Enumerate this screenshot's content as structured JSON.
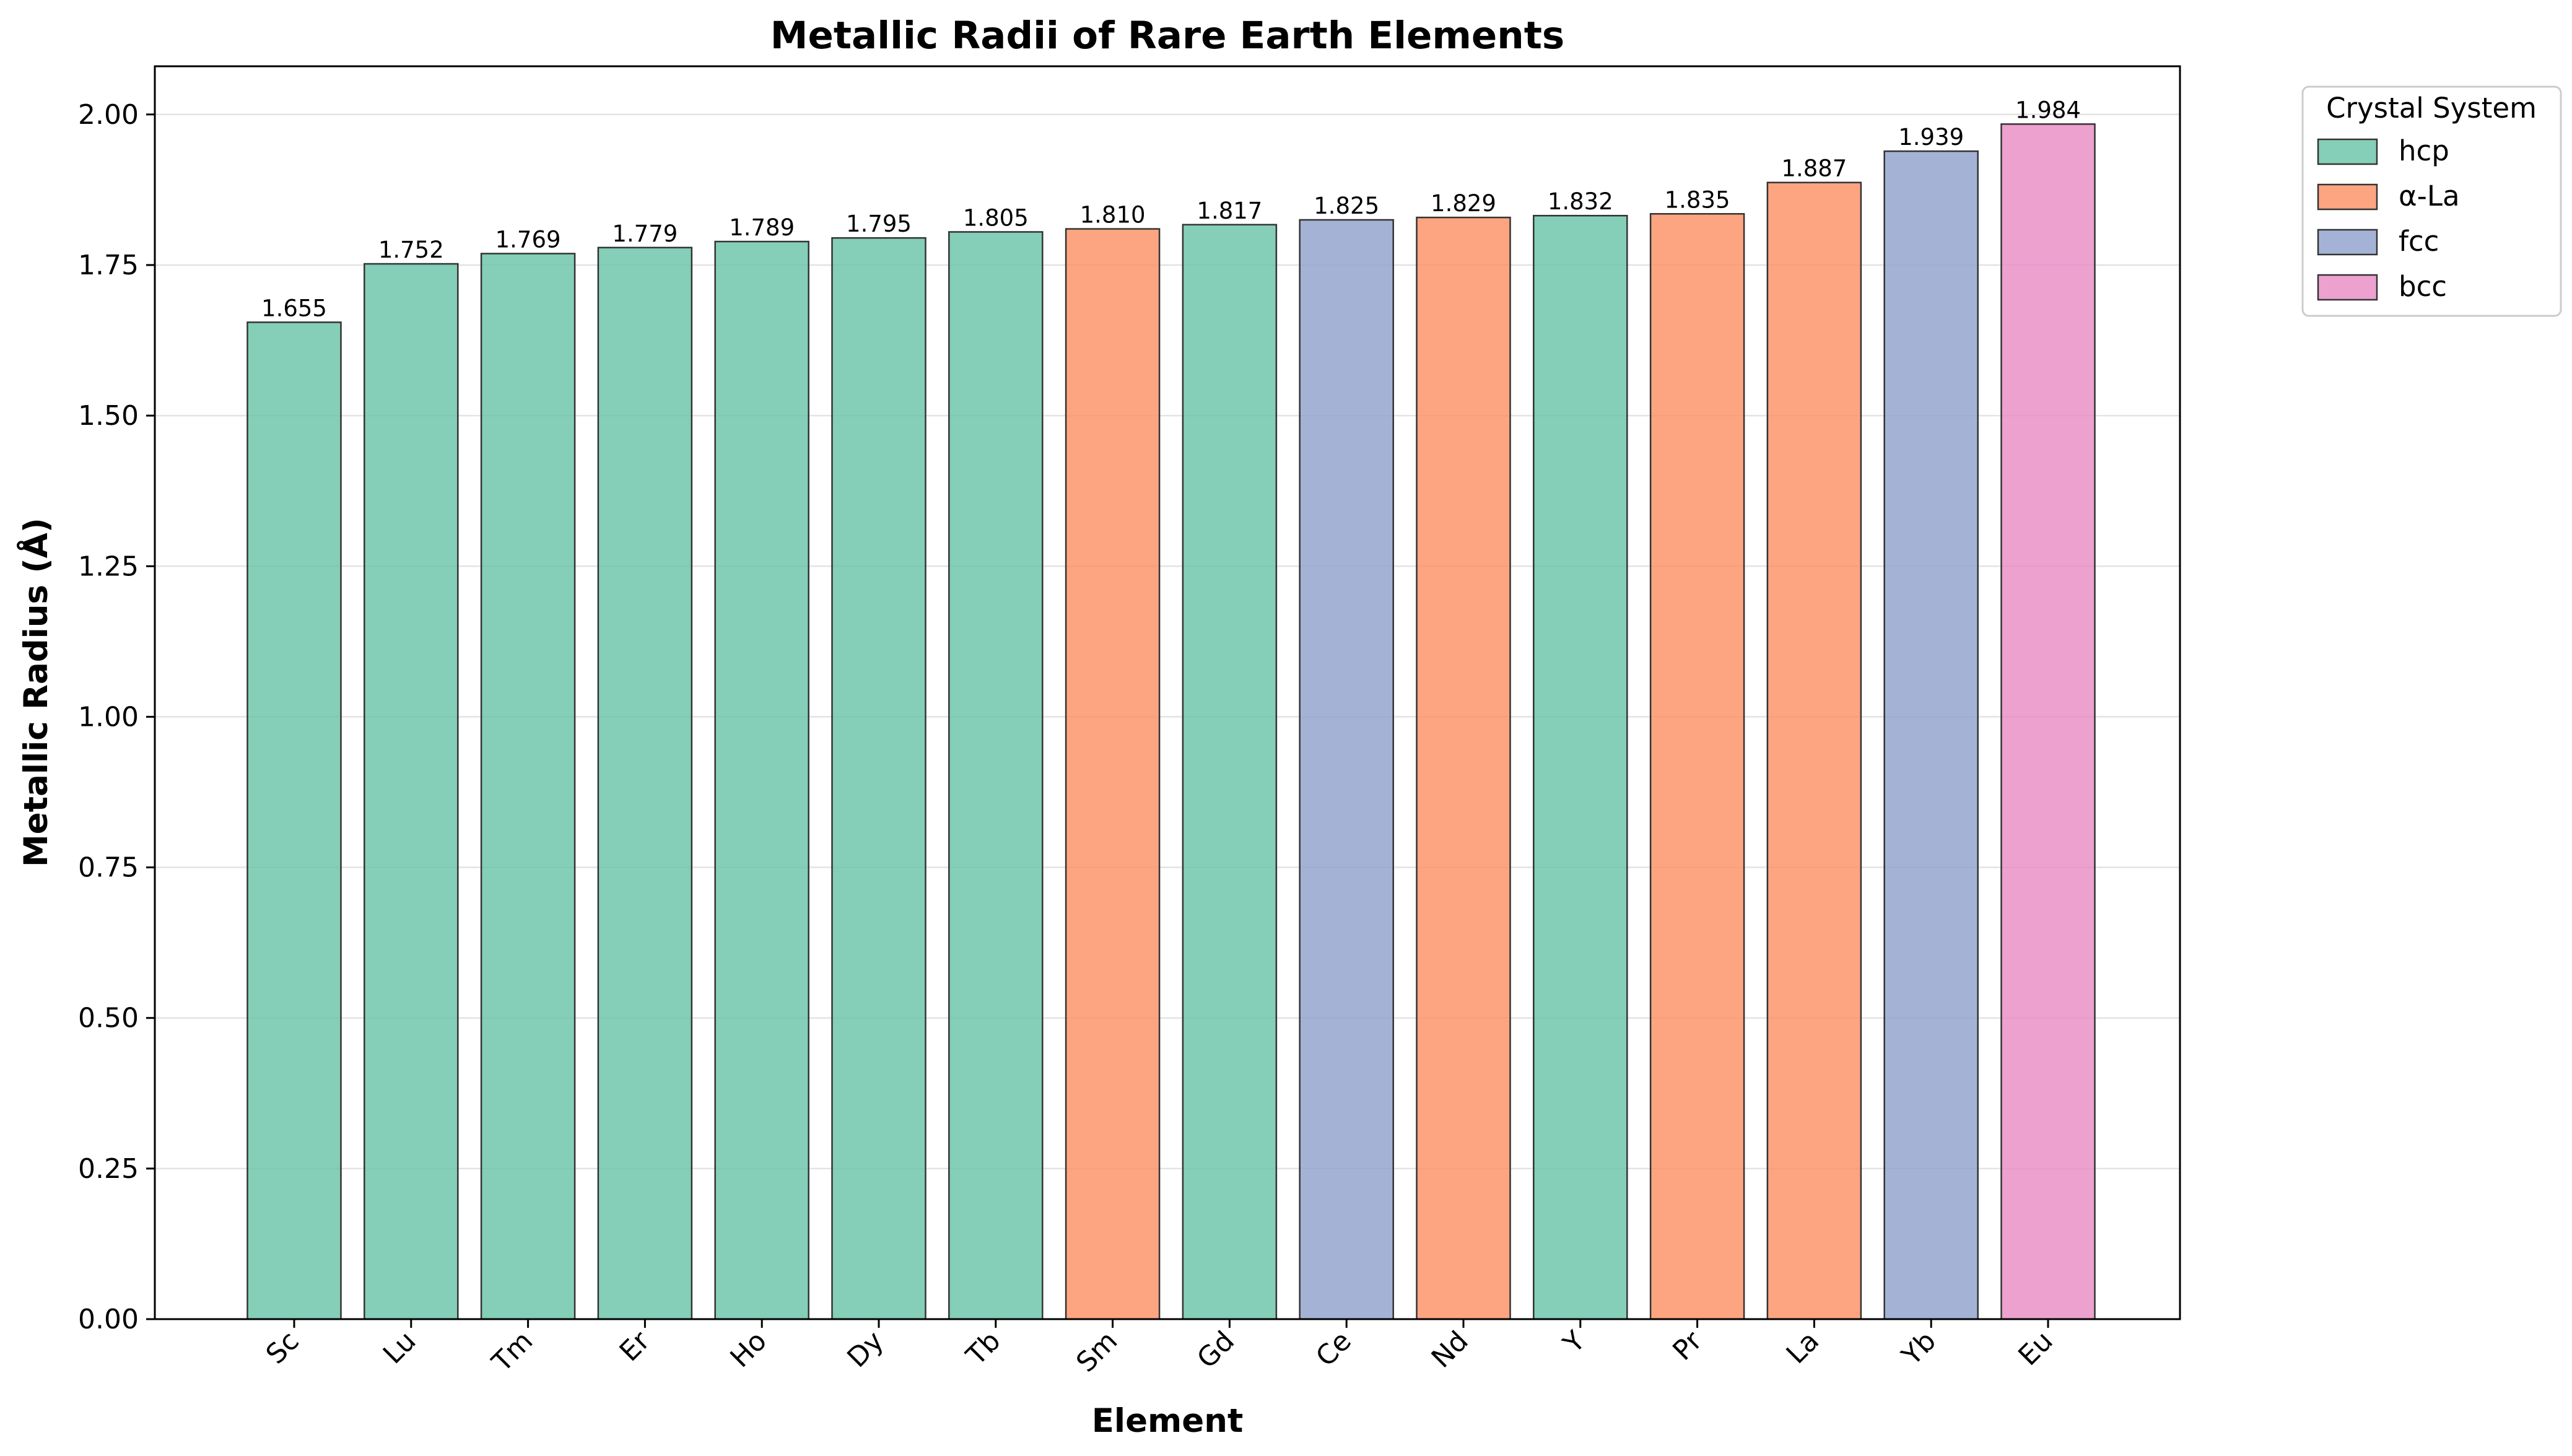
{
  "chart_data": {
    "type": "bar",
    "title": "Metallic Radii of Rare Earth Elements",
    "xlabel": "Element",
    "ylabel": "Metallic Radius (Å)",
    "ylim": [
      0,
      2.08
    ],
    "yticks": [
      "0.00",
      "0.25",
      "0.50",
      "0.75",
      "1.00",
      "1.25",
      "1.50",
      "1.75",
      "2.00"
    ],
    "ytick_values": [
      0,
      0.25,
      0.5,
      0.75,
      1.0,
      1.25,
      1.5,
      1.75,
      2.0
    ],
    "grid": "horizontal",
    "categories": [
      "Sc",
      "Lu",
      "Tm",
      "Er",
      "Ho",
      "Dy",
      "Tb",
      "Sm",
      "Gd",
      "Ce",
      "Nd",
      "Y",
      "Pr",
      "La",
      "Yb",
      "Eu"
    ],
    "values": [
      1.655,
      1.752,
      1.769,
      1.779,
      1.789,
      1.795,
      1.805,
      1.81,
      1.817,
      1.825,
      1.829,
      1.832,
      1.835,
      1.887,
      1.939,
      1.984
    ],
    "value_labels": [
      "1.655",
      "1.752",
      "1.769",
      "1.779",
      "1.789",
      "1.795",
      "1.805",
      "1.810",
      "1.817",
      "1.825",
      "1.829",
      "1.832",
      "1.835",
      "1.887",
      "1.939",
      "1.984"
    ],
    "crystal_system": [
      "hcp",
      "hcp",
      "hcp",
      "hcp",
      "hcp",
      "hcp",
      "hcp",
      "α-La",
      "hcp",
      "fcc",
      "α-La",
      "hcp",
      "α-La",
      "α-La",
      "fcc",
      "bcc"
    ],
    "legend": {
      "title": "Crystal System",
      "placement": "outside-top-right",
      "entries": [
        {
          "name": "hcp",
          "color": "#66c2a5"
        },
        {
          "name": "α-La",
          "color": "#fc8d62"
        },
        {
          "name": "fcc",
          "color": "#8da0cb"
        },
        {
          "name": "bcc",
          "color": "#e78ac3"
        }
      ]
    }
  }
}
